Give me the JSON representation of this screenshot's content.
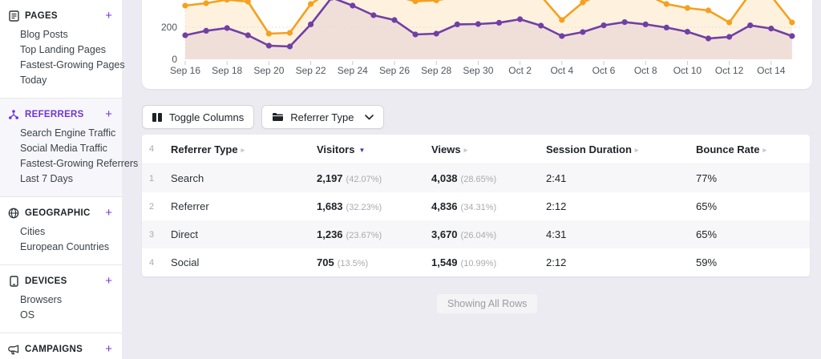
{
  "accent": "#6E34D9",
  "sidebar": {
    "sections": [
      {
        "id": "pages",
        "title": "PAGES",
        "icon": "pages-icon",
        "active": false,
        "plus": "+",
        "items": [
          "Blog Posts",
          "Top Landing Pages",
          "Fastest-Growing Pages",
          "Today"
        ]
      },
      {
        "id": "referrers",
        "title": "REFERRERS",
        "icon": "referrers-icon",
        "active": true,
        "plus": "+",
        "items": [
          "Search Engine Traffic",
          "Social Media Traffic",
          "Fastest-Growing Referrers",
          "Last 7 Days"
        ]
      },
      {
        "id": "geographic",
        "title": "GEOGRAPHIC",
        "icon": "geographic-icon",
        "active": false,
        "plus": "+",
        "items": [
          "Cities",
          "European Countries"
        ]
      },
      {
        "id": "devices",
        "title": "DEVICES",
        "icon": "devices-icon",
        "active": false,
        "plus": "+",
        "items": [
          "Browsers",
          "OS"
        ]
      },
      {
        "id": "campaigns",
        "title": "CAMPAIGNS",
        "icon": "campaigns-icon",
        "active": false,
        "plus": "+",
        "items": []
      }
    ]
  },
  "toolbar": {
    "toggle_columns_label": "Toggle Columns",
    "filter_label": "Referrer Type"
  },
  "chart_data": {
    "type": "area",
    "title": "",
    "x": [
      "Sep 16",
      "Sep 17",
      "Sep 18",
      "Sep 19",
      "Sep 20",
      "Sep 21",
      "Sep 22",
      "Sep 23",
      "Sep 24",
      "Sep 25",
      "Sep 26",
      "Sep 27",
      "Sep 28",
      "Sep 29",
      "Sep 30",
      "Oct 1",
      "Oct 2",
      "Oct 3",
      "Oct 4",
      "Oct 5",
      "Oct 6",
      "Oct 7",
      "Oct 8",
      "Oct 9",
      "Oct 10",
      "Oct 11",
      "Oct 12",
      "Oct 13",
      "Oct 14",
      "Oct 15"
    ],
    "x_tick_labels": [
      "Sep 16",
      "Sep 18",
      "Sep 20",
      "Sep 22",
      "Sep 24",
      "Sep 26",
      "Sep 28",
      "Sep 30",
      "Oct 2",
      "Oct 4",
      "Oct 6",
      "Oct 8",
      "Oct 10",
      "Oct 12",
      "Oct 14"
    ],
    "series": [
      {
        "name": "Views",
        "color": "#F5A01E",
        "fill": "rgba(245,160,30,0.14)",
        "values": [
          335,
          350,
          372,
          360,
          160,
          165,
          345,
          432,
          420,
          402,
          395,
          362,
          368,
          390,
          400,
          405,
          392,
          395,
          245,
          355,
          415,
          432,
          405,
          345,
          320,
          305,
          230,
          410,
          395,
          230
        ]
      },
      {
        "name": "Visitors",
        "color": "#713FA4",
        "fill": "rgba(113,63,164,0.10)",
        "values": [
          150,
          178,
          195,
          150,
          85,
          80,
          218,
          385,
          335,
          275,
          245,
          155,
          160,
          218,
          220,
          228,
          250,
          210,
          145,
          170,
          212,
          232,
          218,
          198,
          172,
          130,
          140,
          212,
          192,
          145
        ]
      }
    ],
    "y_ticks": [
      0,
      200
    ],
    "gridline_y": 200,
    "ylim_visible": [
      0,
      370
    ],
    "legend": "off",
    "grid": "dotted-horizontal-at-200"
  },
  "table": {
    "row_count": "4",
    "columns": [
      {
        "label": "Referrer Type",
        "sorted": false
      },
      {
        "label": "Visitors",
        "sorted": true
      },
      {
        "label": "Views",
        "sorted": false
      },
      {
        "label": "Session Duration",
        "sorted": false
      },
      {
        "label": "Bounce Rate",
        "sorted": false
      }
    ],
    "rows": [
      {
        "num": "1",
        "referrer_type": "Search",
        "visitors": "2,197",
        "visitors_pct": "(42.07%)",
        "views": "4,038",
        "views_pct": "(28.65%)",
        "session_duration": "2:41",
        "bounce_rate": "77%"
      },
      {
        "num": "2",
        "referrer_type": "Referrer",
        "visitors": "1,683",
        "visitors_pct": "(32.23%)",
        "views": "4,836",
        "views_pct": "(34.31%)",
        "session_duration": "2:12",
        "bounce_rate": "65%"
      },
      {
        "num": "3",
        "referrer_type": "Direct",
        "visitors": "1,236",
        "visitors_pct": "(23.67%)",
        "views": "3,670",
        "views_pct": "(26.04%)",
        "session_duration": "4:31",
        "bounce_rate": "65%"
      },
      {
        "num": "4",
        "referrer_type": "Social",
        "visitors": "705",
        "visitors_pct": "(13.5%)",
        "views": "1,549",
        "views_pct": "(10.99%)",
        "session_duration": "2:12",
        "bounce_rate": "59%"
      }
    ]
  },
  "footer": {
    "showing_label": "Showing All Rows"
  }
}
